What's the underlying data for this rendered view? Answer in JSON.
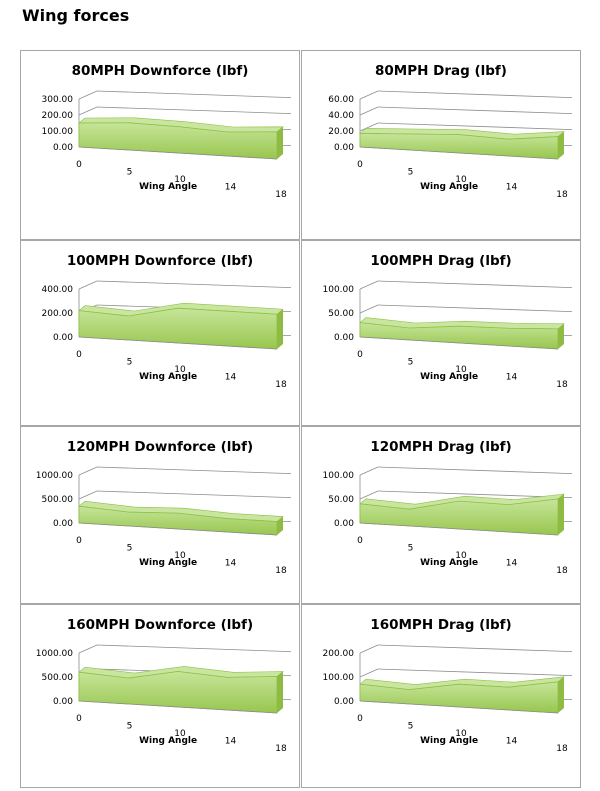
{
  "page": {
    "title": "Wing forces"
  },
  "chart_data": [
    {
      "id": "c80d",
      "type": "area",
      "title": "80MPH Downforce (lbf)",
      "xlabel": "Wing Angle",
      "categories": [
        "0",
        "5",
        "10",
        "14",
        "18"
      ],
      "values": [
        150,
        170,
        165,
        150,
        170
      ],
      "ylim": [
        0,
        300
      ],
      "yticks": [
        "300.00",
        "200.00",
        "100.00",
        "0.00"
      ],
      "color": "#a8d26a"
    },
    {
      "id": "c80g",
      "type": "area",
      "title": "80MPH Drag (lbf)",
      "xlabel": "Wing Angle",
      "categories": [
        "0",
        "5",
        "10",
        "14",
        "18"
      ],
      "values": [
        17,
        20,
        23,
        21,
        28
      ],
      "ylim": [
        0,
        60
      ],
      "yticks": [
        "60.00",
        "40.00",
        "20.00",
        "0.00"
      ],
      "color": "#a8d26a"
    },
    {
      "id": "c100d",
      "type": "area",
      "title": "100MPH Downforce (lbf)",
      "xlabel": "Wing Angle",
      "categories": [
        "0",
        "5",
        "10",
        "14",
        "18"
      ],
      "values": [
        220,
        200,
        290,
        290,
        290
      ],
      "ylim": [
        0,
        400
      ],
      "yticks": [
        "400.00",
        "200.00",
        "0.00"
      ],
      "color": "#a8d26a"
    },
    {
      "id": "c100g",
      "type": "area",
      "title": "100MPH Drag (lbf)",
      "xlabel": "Wing Angle",
      "categories": [
        "0",
        "5",
        "10",
        "14",
        "18"
      ],
      "values": [
        30,
        25,
        35,
        37,
        42
      ],
      "ylim": [
        0,
        100
      ],
      "yticks": [
        "100.00",
        "50.00",
        "0.00"
      ],
      "color": "#a8d26a"
    },
    {
      "id": "c120d",
      "type": "area",
      "title": "120MPH Downforce (lbf)",
      "xlabel": "Wing Angle",
      "categories": [
        "0",
        "5",
        "10",
        "14",
        "18"
      ],
      "values": [
        350,
        290,
        330,
        280,
        280
      ],
      "ylim": [
        0,
        1000
      ],
      "yticks": [
        "1000.00",
        "500.00",
        "0.00"
      ],
      "color": "#a8d26a"
    },
    {
      "id": "c120g",
      "type": "area",
      "title": "120MPH Drag (lbf)",
      "xlabel": "Wing Angle",
      "categories": [
        "0",
        "5",
        "10",
        "14",
        "18"
      ],
      "values": [
        40,
        35,
        58,
        57,
        75
      ],
      "ylim": [
        0,
        100
      ],
      "yticks": [
        "100.00",
        "50.00",
        "0.00"
      ],
      "color": "#a8d26a"
    },
    {
      "id": "c160d",
      "type": "area",
      "title": "160MPH Downforce (lbf)",
      "xlabel": "Wing Angle",
      "categories": [
        "0",
        "5",
        "10",
        "14",
        "18"
      ],
      "values": [
        600,
        540,
        740,
        680,
        760
      ],
      "ylim": [
        0,
        1000
      ],
      "yticks": [
        "1000.00",
        "500.00",
        "0.00"
      ],
      "color": "#a8d26a"
    },
    {
      "id": "c160g",
      "type": "area",
      "title": "160MPH Drag (lbf)",
      "xlabel": "Wing Angle",
      "categories": [
        "0",
        "5",
        "10",
        "14",
        "18"
      ],
      "values": [
        70,
        60,
        95,
        95,
        130
      ],
      "ylim": [
        0,
        200
      ],
      "yticks": [
        "200.00",
        "100.00",
        "0.00"
      ],
      "color": "#a8d26a"
    }
  ]
}
